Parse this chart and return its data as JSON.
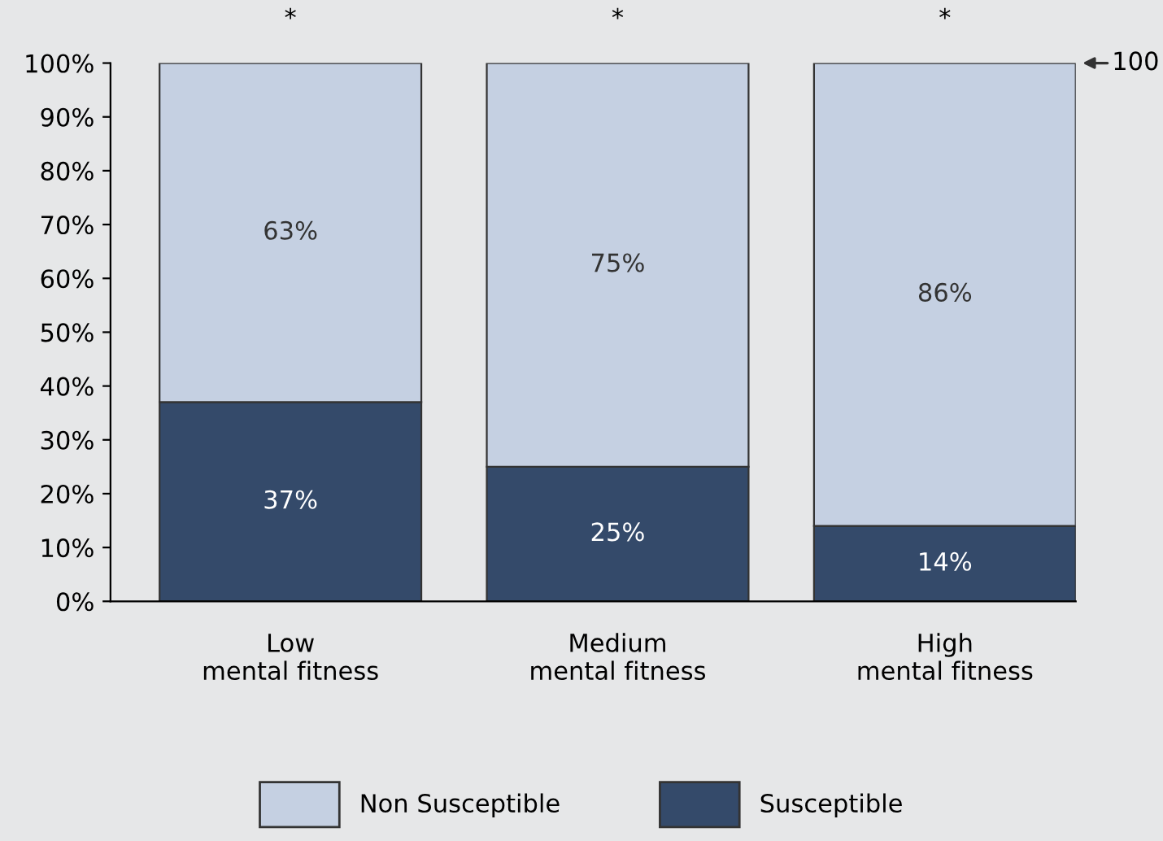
{
  "chart_data": {
    "type": "bar",
    "stacked": true,
    "categories": [
      "Low\nmental fitness",
      "Medium\nmental fitness",
      "High\nmental fitness"
    ],
    "series": [
      {
        "name": "Susceptible",
        "color": "#344a6a",
        "values": [
          37,
          25,
          14
        ],
        "value_labels": [
          "37%",
          "25%",
          "14%"
        ]
      },
      {
        "name": "Non Susceptible",
        "color": "#c5d0e2",
        "values": [
          63,
          75,
          86
        ],
        "value_labels": [
          "63%",
          "75%",
          "86%"
        ]
      }
    ],
    "ylim": [
      0,
      100
    ],
    "yticks": [
      {
        "value": 0,
        "label": "0%"
      },
      {
        "value": 10,
        "label": "10%"
      },
      {
        "value": 20,
        "label": "20%"
      },
      {
        "value": 30,
        "label": "30%"
      },
      {
        "value": 40,
        "label": "40%"
      },
      {
        "value": 50,
        "label": "50%"
      },
      {
        "value": 60,
        "label": "60%"
      },
      {
        "value": 70,
        "label": "70%"
      },
      {
        "value": 80,
        "label": "80%"
      },
      {
        "value": 90,
        "label": "90%"
      },
      {
        "value": 100,
        "label": "100%"
      }
    ],
    "annotations": [
      {
        "text": "*",
        "x": "Low\nmental fitness",
        "y": 100
      },
      {
        "text": "*",
        "x": "Medium\nmental fitness",
        "y": 100
      },
      {
        "text": "*",
        "x": "High\nmental fitness",
        "y": 100
      },
      "100"
    ],
    "grid": false,
    "legend": "bottom"
  }
}
